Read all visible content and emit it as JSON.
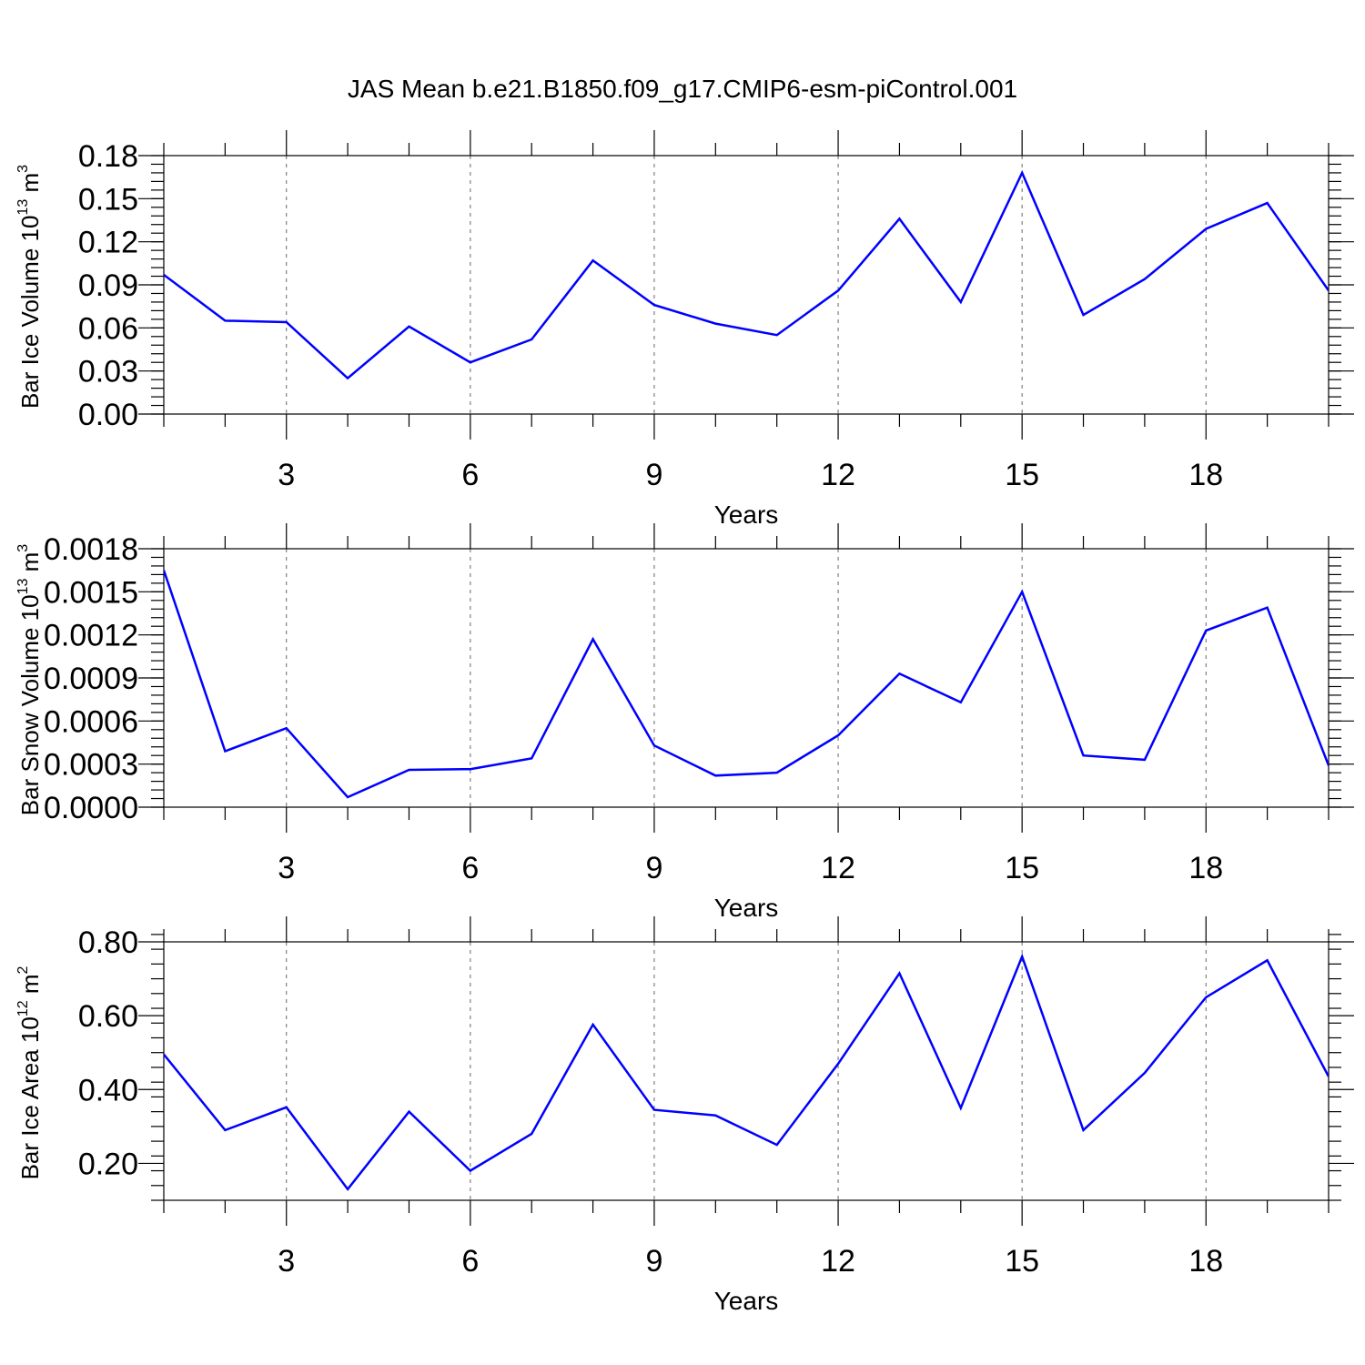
{
  "title": "JAS Mean b.e21.B1850.f09_g17.CMIP6-esm-piControl.001",
  "series_color": "#0000ff",
  "chart_data": [
    {
      "type": "line",
      "id": "ice-volume",
      "ylabel_parts": [
        "Bar Ice Volume 10",
        "13",
        " m",
        "3"
      ],
      "xlabel": "Years",
      "x": [
        1,
        2,
        3,
        4,
        5,
        6,
        7,
        8,
        9,
        10,
        11,
        12,
        13,
        14,
        15,
        16,
        17,
        18,
        19,
        20
      ],
      "values": [
        0.097,
        0.065,
        0.064,
        0.025,
        0.061,
        0.036,
        0.052,
        0.107,
        0.076,
        0.063,
        0.055,
        0.086,
        0.136,
        0.078,
        0.168,
        0.069,
        0.094,
        0.129,
        0.147,
        0.086
      ],
      "ylim": [
        0,
        0.18
      ],
      "xlim": [
        1,
        20
      ],
      "yticks": [
        "0.00",
        "0.03",
        "0.06",
        "0.09",
        "0.12",
        "0.15",
        "0.18"
      ],
      "ytick_values": [
        0,
        0.03,
        0.06,
        0.09,
        0.12,
        0.15,
        0.18
      ],
      "yminor_step": 0.006,
      "xticks": [
        "3",
        "6",
        "9",
        "12",
        "15",
        "18"
      ],
      "xtick_values": [
        3,
        6,
        9,
        12,
        15,
        18
      ],
      "grid": "x-dashed"
    },
    {
      "type": "line",
      "id": "snow-volume",
      "ylabel_parts": [
        "Bar Snow Volume 10",
        "13",
        " m",
        "3"
      ],
      "xlabel": "Years",
      "x": [
        1,
        2,
        3,
        4,
        5,
        6,
        7,
        8,
        9,
        10,
        11,
        12,
        13,
        14,
        15,
        16,
        17,
        18,
        19,
        20
      ],
      "values": [
        0.00165,
        0.00039,
        0.00055,
        7e-05,
        0.00026,
        0.000265,
        0.00034,
        0.00117,
        0.00043,
        0.00022,
        0.00024,
        0.0005,
        0.00093,
        0.00073,
        0.0015,
        0.00036,
        0.00033,
        0.00123,
        0.00139,
        0.00029
      ],
      "ylim": [
        0,
        0.0018
      ],
      "xlim": [
        1,
        20
      ],
      "yticks": [
        "0.0000",
        "0.0003",
        "0.0006",
        "0.0009",
        "0.0012",
        "0.0015",
        "0.0018"
      ],
      "ytick_values": [
        0,
        0.0003,
        0.0006,
        0.0009,
        0.0012,
        0.0015,
        0.0018
      ],
      "yminor_step": 6e-05,
      "xticks": [
        "3",
        "6",
        "9",
        "12",
        "15",
        "18"
      ],
      "xtick_values": [
        3,
        6,
        9,
        12,
        15,
        18
      ],
      "grid": "x-dashed"
    },
    {
      "type": "line",
      "id": "ice-area",
      "ylabel_parts": [
        "Bar Ice Area 10",
        "12",
        " m",
        "2"
      ],
      "xlabel": "Years",
      "x": [
        1,
        2,
        3,
        4,
        5,
        6,
        7,
        8,
        9,
        10,
        11,
        12,
        13,
        14,
        15,
        16,
        17,
        18,
        19,
        20
      ],
      "values": [
        0.495,
        0.29,
        0.352,
        0.13,
        0.34,
        0.18,
        0.28,
        0.576,
        0.345,
        0.33,
        0.25,
        0.47,
        0.715,
        0.35,
        0.76,
        0.29,
        0.445,
        0.65,
        0.75,
        0.435
      ],
      "ylim": [
        0.1,
        0.8
      ],
      "xlim": [
        1,
        20
      ],
      "yticks": [
        "0.20",
        "0.40",
        "0.60",
        "0.80"
      ],
      "ytick_values": [
        0.2,
        0.4,
        0.6,
        0.8
      ],
      "yminor_step": 0.04,
      "xticks": [
        "3",
        "6",
        "9",
        "12",
        "15",
        "18"
      ],
      "xtick_values": [
        3,
        6,
        9,
        12,
        15,
        18
      ],
      "grid": "x-dashed"
    }
  ]
}
